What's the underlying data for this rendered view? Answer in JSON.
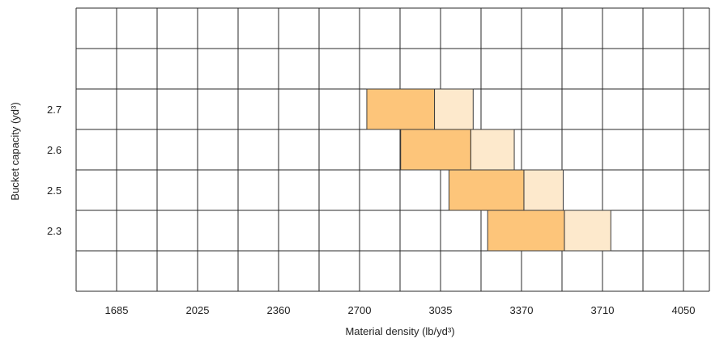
{
  "chart_data": {
    "type": "bar",
    "subtype": "floating-range-heatmap",
    "xlabel": "Material density (lb/yd³)",
    "ylabel": "Bucket capacity (yd³)",
    "x_ticks": [
      "1685",
      "2025",
      "2360",
      "2700",
      "3035",
      "3370",
      "3710",
      "4050"
    ],
    "y_ticks": [
      "2.7",
      "2.6",
      "2.5",
      "2.3"
    ],
    "grid": true,
    "colors": {
      "primary": "#fdc57a",
      "secondary": "#fde9cc",
      "border": "#3a3a3a"
    },
    "series": [
      {
        "category": "2.7",
        "primary": [
          2730,
          3010
        ],
        "secondary": [
          3010,
          3170
        ]
      },
      {
        "category": "2.6",
        "primary": [
          2870,
          3160
        ],
        "secondary": [
          3160,
          3340
        ]
      },
      {
        "category": "2.5",
        "primary": [
          3070,
          3380
        ],
        "secondary": [
          3380,
          3545
        ]
      },
      {
        "category": "2.3",
        "primary": [
          3230,
          3550
        ],
        "secondary": [
          3550,
          3745
        ]
      }
    ]
  }
}
